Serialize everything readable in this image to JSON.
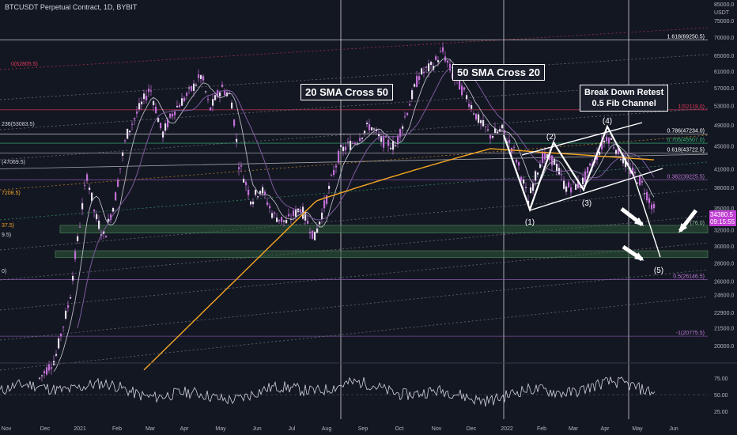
{
  "header": {
    "title": "BTCUSDT Perpetual Contract, 1D, BYBIT"
  },
  "axis": {
    "unit": "USDT",
    "y_ticks": [
      "85000.0",
      "75000.0",
      "70000.0",
      "65000.0",
      "61000.0",
      "57000.0",
      "53000.0",
      "49000.0",
      "45000.0",
      "41000.0",
      "38000.0",
      "35000.0",
      "32000.0",
      "30000.0",
      "28000.0",
      "26000.0",
      "24600.0",
      "22900.0",
      "21500.0",
      "20000.0"
    ],
    "x_ticks": [
      "Nov",
      "Dec",
      "2021",
      "Feb",
      "Mar",
      "Apr",
      "May",
      "Jun",
      "Jul",
      "Aug",
      "Sep",
      "Oct",
      "Nov",
      "Dec",
      "2022",
      "Feb",
      "Mar",
      "Apr",
      "May",
      "Jun"
    ],
    "rsi_ticks": [
      "75.00",
      "50.00",
      "25.00"
    ]
  },
  "last_price": {
    "value": "34380.5",
    "countdown": "09:15:55"
  },
  "annotations": {
    "sma_20_50": "20 SMA Cross 50",
    "sma_50_20": "50 SMA Cross 20",
    "breakdown_line1": "Break Down Retest",
    "breakdown_line2": "0.5 Fib Channel"
  },
  "wave_labels": [
    "(1)",
    "(2)",
    "(3)",
    "(4)",
    "(5)"
  ],
  "fib_labels": {
    "right": [
      "1.618(69250.5)",
      "1(52119.0)",
      "0.786(47234.0)",
      "0.705(45507.0)",
      "0.618(43722.5)",
      "0.382(39225.5)",
      "0.5(26146.5)",
      "-1(20775.5)"
    ],
    "left": [
      "0(62805.5)",
      "236(53083.5)",
      "(47069.5)",
      "7208.5)",
      "37.5)",
      "9.5)",
      "0)"
    ],
    "right_partial": "(76.0)"
  },
  "colors": {
    "background": "#131722",
    "candle": "#c06fd6",
    "sma_fast": "#b9b9c4",
    "sma_slow": "#7e5a9e",
    "sma_200": "#f5a623",
    "support_zone": "#2f5a3a",
    "fib_red": "#e0395a",
    "fib_green": "#3cba78"
  },
  "chart_data": {
    "type": "line",
    "title": "BTCUSDT Perpetual Contract, 1D, BYBIT",
    "xlabel": "",
    "ylabel": "",
    "ylim": [
      20000,
      75000
    ],
    "x": [
      "2020-11",
      "2020-12",
      "2021-01",
      "2021-02",
      "2021-03",
      "2021-04",
      "2021-05",
      "2021-06",
      "2021-07",
      "2021-08",
      "2021-09",
      "2021-10",
      "2021-11",
      "2021-12",
      "2022-01",
      "2022-02",
      "2022-03",
      "2022-04",
      "2022-05"
    ],
    "series": [
      {
        "name": "",
        "values": [
          18500,
          20000,
          33000,
          47000,
          57000,
          59000,
          38000,
          34000,
          32000,
          47000,
          44000,
          61000,
          62000,
          48000,
          36000,
          40000,
          44000,
          44000,
          34380
        ]
      }
    ],
    "support_zones": [
      [
        31600,
        32600
      ],
      [
        28600,
        29400
      ]
    ],
    "grid": true,
    "legend": "none"
  }
}
